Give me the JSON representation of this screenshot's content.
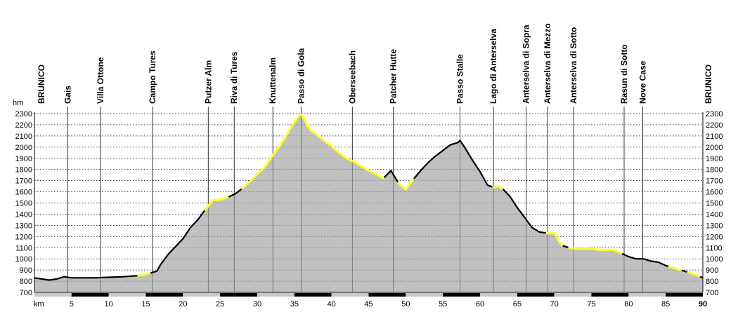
{
  "chart_data": {
    "type": "area",
    "title": "",
    "ylabel": "hm",
    "xlabel": "km",
    "xlim": [
      0,
      90
    ],
    "ylim": [
      700,
      2300
    ],
    "x_ticks": [
      5,
      10,
      15,
      20,
      25,
      30,
      35,
      40,
      45,
      50,
      55,
      60,
      65,
      70,
      75,
      80,
      85,
      90
    ],
    "y_ticks": [
      700,
      800,
      900,
      1000,
      1100,
      1200,
      1300,
      1400,
      1500,
      1600,
      1700,
      1800,
      1900,
      2000,
      2100,
      2200,
      2300
    ],
    "grid": "horizontal dotted",
    "colors": {
      "fill": "#c0c0c0",
      "profile": "#000000",
      "highlight": "#ffff33",
      "grid": "#000000"
    },
    "locations": [
      {
        "name": "BRUNICO",
        "km": 0
      },
      {
        "name": "Gais",
        "km": 4.5
      },
      {
        "name": "Villa Ottone",
        "km": 8.9
      },
      {
        "name": "Campo Tures",
        "km": 15.9
      },
      {
        "name": "Putzer Alm",
        "km": 23.4
      },
      {
        "name": "Riva di Tures",
        "km": 26.9
      },
      {
        "name": "Knuttenalm",
        "km": 32.1
      },
      {
        "name": "Passo di Gola",
        "km": 35.9
      },
      {
        "name": "Oberseebach",
        "km": 42.8
      },
      {
        "name": "Patcher Hutte",
        "km": 48.3
      },
      {
        "name": "Passo Stalle",
        "km": 57.3
      },
      {
        "name": "Lago di Anterselva",
        "km": 61.8
      },
      {
        "name": "Anterselva di Sopra",
        "km": 66.2
      },
      {
        "name": "Anterselva di Mezzo",
        "km": 69.1
      },
      {
        "name": "Anterselva di Sotto",
        "km": 72.6
      },
      {
        "name": "Rasun di Sotto",
        "km": 79.4
      },
      {
        "name": "Nove Case",
        "km": 81.9
      },
      {
        "name": "BRUNICO",
        "km": 90
      }
    ],
    "x": [
      0,
      1,
      2,
      3,
      4,
      5,
      6,
      8,
      10,
      12,
      13,
      14,
      14.5,
      15.5,
      16.5,
      17,
      18,
      19,
      20,
      21,
      22,
      23,
      24,
      25,
      26,
      27,
      28,
      29,
      30,
      31,
      32,
      33,
      34,
      35,
      35.9,
      36.5,
      37,
      38,
      39,
      40,
      41,
      42,
      43,
      44,
      45,
      46,
      47,
      48,
      49,
      50,
      51,
      52,
      53,
      54,
      55,
      56,
      57,
      57.3,
      58,
      59,
      60,
      61,
      61.8,
      62.5,
      63,
      64,
      65,
      66,
      67,
      68,
      69,
      70,
      71,
      72,
      73,
      74,
      75,
      76,
      77,
      78,
      79,
      80,
      81,
      82,
      83,
      84,
      85,
      86,
      87,
      88,
      89,
      90
    ],
    "y": [
      830,
      820,
      810,
      820,
      840,
      830,
      830,
      830,
      835,
      840,
      845,
      850,
      855,
      870,
      890,
      950,
      1040,
      1110,
      1180,
      1280,
      1350,
      1440,
      1525,
      1530,
      1550,
      1580,
      1630,
      1690,
      1760,
      1820,
      1920,
      2010,
      2110,
      2230,
      2300,
      2230,
      2160,
      2110,
      2060,
      2010,
      1950,
      1900,
      1870,
      1830,
      1790,
      1760,
      1720,
      1790,
      1680,
      1620,
      1710,
      1790,
      1860,
      1920,
      1970,
      2020,
      2040,
      2060,
      1990,
      1880,
      1780,
      1660,
      1640,
      1650,
      1630,
      1560,
      1460,
      1370,
      1280,
      1240,
      1230,
      1230,
      1120,
      1100,
      1090,
      1090,
      1090,
      1080,
      1080,
      1080,
      1050,
      1020,
      1000,
      1000,
      980,
      970,
      940,
      920,
      900,
      880,
      860,
      830
    ],
    "highlight_segments": [
      [
        14,
        15.5
      ],
      [
        23,
        26
      ],
      [
        28,
        36.5
      ],
      [
        36.5,
        47
      ],
      [
        49,
        51
      ],
      [
        61.8,
        63
      ],
      [
        69,
        71
      ],
      [
        72,
        79
      ],
      [
        85.5,
        87
      ],
      [
        88,
        89.5
      ]
    ]
  }
}
